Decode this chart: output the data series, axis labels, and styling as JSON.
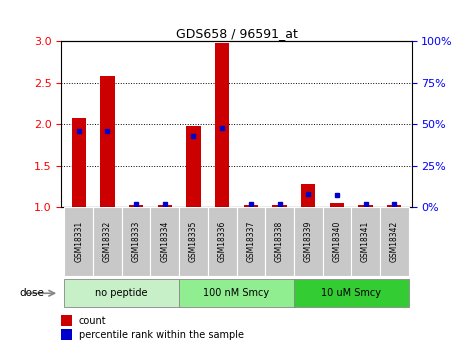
{
  "title": "GDS658 / 96591_at",
  "samples": [
    "GSM18331",
    "GSM18332",
    "GSM18333",
    "GSM18334",
    "GSM18335",
    "GSM18336",
    "GSM18337",
    "GSM18338",
    "GSM18339",
    "GSM18340",
    "GSM18341",
    "GSM18342"
  ],
  "red_values": [
    2.08,
    2.58,
    1.02,
    1.02,
    1.98,
    2.98,
    1.02,
    1.02,
    1.28,
    1.05,
    1.02,
    1.02
  ],
  "blue_values": [
    46,
    46,
    2,
    2,
    43,
    48,
    2,
    2,
    8,
    7,
    2,
    2
  ],
  "ylim_left": [
    1.0,
    3.0
  ],
  "ylim_right": [
    0,
    100
  ],
  "yticks_left": [
    1.0,
    1.5,
    2.0,
    2.5,
    3.0
  ],
  "yticks_right": [
    0,
    25,
    50,
    75,
    100
  ],
  "group_labels": [
    "no peptide",
    "100 nM Smcy",
    "10 uM Smcy"
  ],
  "group_starts": [
    0,
    4,
    8
  ],
  "group_ends": [
    4,
    8,
    12
  ],
  "group_colors": [
    "#c8f0c8",
    "#90ee90",
    "#33cc33"
  ],
  "dose_label": "dose",
  "red_color": "#cc0000",
  "blue_color": "#0000cc",
  "bar_width": 0.5,
  "sample_bg_color": "#c8c8c8",
  "legend_red": "count",
  "legend_blue": "percentile rank within the sample",
  "grid_yticks": [
    1.5,
    2.0,
    2.5
  ]
}
